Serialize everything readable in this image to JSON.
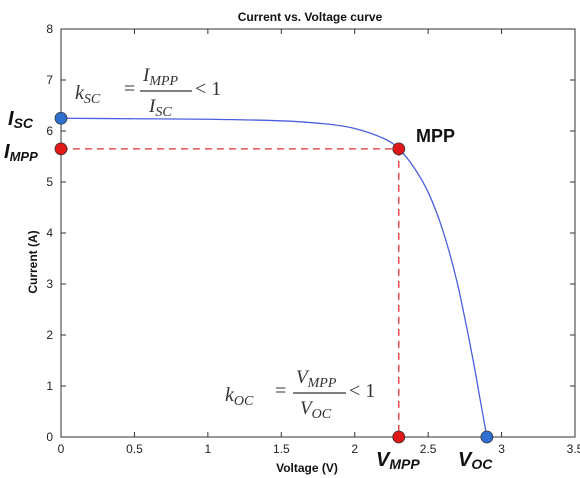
{
  "chart_data": {
    "type": "line",
    "title": "Current vs. Voltage curve",
    "xlabel": "Voltage (V)",
    "ylabel": "Current (A)",
    "xlim": [
      0,
      3.5
    ],
    "ylim": [
      0,
      8
    ],
    "x_ticks": [
      0,
      0.5,
      1,
      1.5,
      2,
      2.5,
      3,
      3.5
    ],
    "x_tick_labels": [
      "0",
      "0.5",
      "1",
      "1.5",
      "2",
      "2.5",
      "3",
      "3.5"
    ],
    "y_ticks": [
      0,
      1,
      2,
      3,
      4,
      5,
      6,
      7,
      8
    ],
    "y_tick_labels": [
      "0",
      "1",
      "2",
      "3",
      "4",
      "5",
      "6",
      "7",
      "8"
    ],
    "grid": false,
    "series": [
      {
        "color": "#4a5fe0",
        "x": [
          0,
          0.5,
          1.0,
          1.5,
          1.8,
          2.0,
          2.2,
          2.3,
          2.4,
          2.5,
          2.6,
          2.7,
          2.8,
          2.85,
          2.9
        ],
        "y": [
          6.25,
          6.24,
          6.23,
          6.2,
          6.14,
          6.05,
          5.85,
          5.65,
          5.3,
          4.8,
          4.05,
          3.0,
          1.6,
          0.8,
          0.0
        ]
      }
    ],
    "points": [
      {
        "name": "isc",
        "x": 0,
        "y": 6.25,
        "color": "#2f6fd0"
      },
      {
        "name": "impp",
        "x": 0,
        "y": 5.65,
        "color": "#e01818"
      },
      {
        "name": "mpp",
        "x": 2.3,
        "y": 5.65,
        "color": "#e01818"
      },
      {
        "name": "vmpp",
        "x": 2.3,
        "y": 0,
        "color": "#e01818"
      },
      {
        "name": "voc",
        "x": 2.9,
        "y": 0,
        "color": "#2f6fd0"
      }
    ],
    "mpp": {
      "x": 2.3,
      "y": 5.65
    },
    "dashed_color": "#e03030",
    "annotations": {
      "isc": {
        "main": "I",
        "sub": "SC"
      },
      "impp": {
        "main": "I",
        "sub": "MPP"
      },
      "mpp": "MPP",
      "vmpp": {
        "main": "V",
        "sub": "MPP"
      },
      "voc": {
        "main": "V",
        "sub": "OC"
      },
      "ksc": {
        "k": "k",
        "k_sub": "SC",
        "num": "I",
        "num_sub": "MPP",
        "den": "I",
        "den_sub": "SC",
        "rel": "< 1"
      },
      "koc": {
        "k": "k",
        "k_sub": "OC",
        "num": "V",
        "num_sub": "MPP",
        "den": "V",
        "den_sub": "OC",
        "rel": "< 1"
      }
    }
  }
}
